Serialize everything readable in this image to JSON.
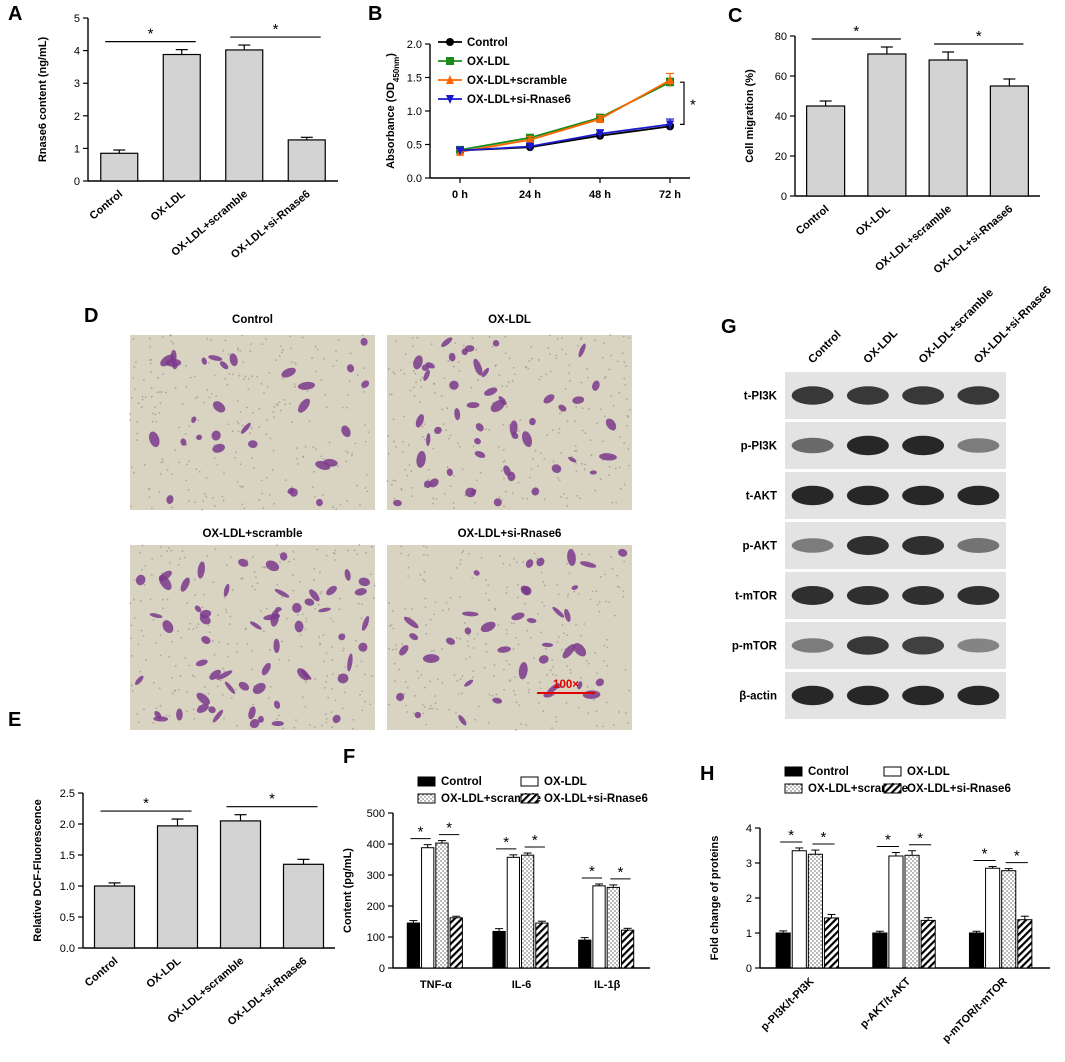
{
  "panels": {
    "A": "A",
    "B": "B",
    "C": "C",
    "D": "D",
    "E": "E",
    "F": "F",
    "G": "G",
    "H": "H"
  },
  "sig_mark": "*",
  "chart_data": [
    {
      "panel": "A",
      "type": "bar",
      "categories": [
        "Control",
        "OX-LDL",
        "OX-LDL+scramble",
        "OX-LDL+si-Rnase6"
      ],
      "values": [
        0.85,
        3.88,
        4.02,
        1.26
      ],
      "errors": [
        0.1,
        0.15,
        0.15,
        0.08
      ],
      "ylabel": "Rnase6 content (ng/mL)",
      "yticks": [
        0,
        1,
        2,
        3,
        4,
        5
      ],
      "ylim": [
        0,
        5
      ],
      "significance": [
        {
          "from": 0,
          "to": 1,
          "label": "*"
        },
        {
          "from": 2,
          "to": 3,
          "label": "*"
        }
      ]
    },
    {
      "panel": "B",
      "type": "line",
      "x": [
        "0 h",
        "24 h",
        "48 h",
        "72 h"
      ],
      "ylabel": "Absorbance (OD",
      "ylabel_sub": "450nm",
      "ylabel_end": ")",
      "yticks": [
        0.0,
        0.5,
        1.0,
        1.5,
        2.0
      ],
      "ylim": [
        0,
        2.0
      ],
      "series": [
        {
          "name": "Control",
          "color": "#000000",
          "marker": "circle",
          "values": [
            0.41,
            0.46,
            0.63,
            0.77
          ],
          "errors": [
            0.03,
            0.03,
            0.04,
            0.03
          ]
        },
        {
          "name": "OX-LDL",
          "color": "#1a8a1a",
          "marker": "square",
          "values": [
            0.42,
            0.6,
            0.9,
            1.43
          ],
          "errors": [
            0.04,
            0.05,
            0.05,
            0.06
          ]
        },
        {
          "name": "OX-LDL+scramble",
          "color": "#ff6600",
          "marker": "triangle-up",
          "values": [
            0.39,
            0.57,
            0.88,
            1.46
          ],
          "errors": [
            0.04,
            0.05,
            0.05,
            0.1
          ]
        },
        {
          "name": "OX-LDL+si-Rnase6",
          "color": "#1a1acc",
          "marker": "triangle-down",
          "values": [
            0.41,
            0.47,
            0.66,
            0.8
          ],
          "errors": [
            0.03,
            0.04,
            0.06,
            0.08
          ]
        }
      ],
      "significance_label": "*"
    },
    {
      "panel": "C",
      "type": "bar",
      "categories": [
        "Control",
        "OX-LDL",
        "OX-LDL+scramble",
        "OX-LDL+si-Rnase6"
      ],
      "values": [
        45,
        71,
        68,
        55
      ],
      "errors": [
        2.5,
        3.5,
        4,
        3.5
      ],
      "ylabel": "Cell migration (%)",
      "yticks": [
        0,
        20,
        40,
        60,
        80
      ],
      "ylim": [
        0,
        80
      ],
      "significance": [
        {
          "from": 0,
          "to": 1,
          "label": "*"
        },
        {
          "from": 2,
          "to": 3,
          "label": "*"
        }
      ]
    },
    {
      "panel": "E",
      "type": "bar",
      "categories": [
        "Control",
        "OX-LDL",
        "OX-LDL+scramble",
        "OX-LDL+si-Rnase6"
      ],
      "values": [
        1.0,
        1.97,
        2.05,
        1.35
      ],
      "errors": [
        0.05,
        0.11,
        0.1,
        0.08
      ],
      "ylabel": "Relative DCF-Fluorescence",
      "yticks": [
        "0.0",
        "0.5",
        "1.0",
        "1.5",
        "2.0",
        "2.5"
      ],
      "ylim": [
        0,
        2.5
      ],
      "significance": [
        {
          "from": 0,
          "to": 1,
          "label": "*"
        },
        {
          "from": 2,
          "to": 3,
          "label": "*"
        }
      ]
    },
    {
      "panel": "F",
      "type": "bar",
      "categories": [
        "TNF-α",
        "IL-6",
        "IL-1β"
      ],
      "ylabel": "Content (pg/mL)",
      "yticks": [
        0,
        100,
        200,
        300,
        400,
        500
      ],
      "ylim": [
        0,
        500
      ],
      "series": [
        {
          "name": "Control",
          "pattern": "solid",
          "values": [
            145,
            118,
            90
          ],
          "errors": [
            8,
            9,
            8
          ]
        },
        {
          "name": "OX-LDL",
          "pattern": "white",
          "values": [
            388,
            357,
            265
          ],
          "errors": [
            10,
            8,
            6
          ]
        },
        {
          "name": "OX-LDL+scramble",
          "pattern": "dots",
          "values": [
            403,
            364,
            260
          ],
          "errors": [
            8,
            7,
            8
          ]
        },
        {
          "name": "OX-LDL+si-Rnase6",
          "pattern": "hatch",
          "values": [
            162,
            145,
            122
          ],
          "errors": [
            5,
            6,
            6
          ]
        }
      ],
      "significance_label": "*"
    },
    {
      "panel": "H",
      "type": "bar",
      "categories": [
        "p-PI3K/t-PI3K",
        "p-AKT/t-AKT",
        "p-mTOR/t-mTOR"
      ],
      "ylabel": "Fold change of  proteins",
      "yticks": [
        0,
        1,
        2,
        3,
        4
      ],
      "ylim": [
        0,
        4
      ],
      "series": [
        {
          "name": "Control",
          "pattern": "solid",
          "values": [
            1.0,
            1.0,
            1.0
          ],
          "errors": [
            0.06,
            0.05,
            0.05
          ]
        },
        {
          "name": "OX-LDL",
          "pattern": "white",
          "values": [
            3.35,
            3.2,
            2.85
          ],
          "errors": [
            0.08,
            0.1,
            0.05
          ]
        },
        {
          "name": "OX-LDL+scramble",
          "pattern": "dots",
          "values": [
            3.25,
            3.22,
            2.78
          ],
          "errors": [
            0.12,
            0.13,
            0.06
          ]
        },
        {
          "name": "OX-LDL+si-Rnase6",
          "pattern": "hatch",
          "values": [
            1.43,
            1.36,
            1.38
          ],
          "errors": [
            0.1,
            0.08,
            0.1
          ]
        }
      ],
      "significance_label": "*"
    }
  ],
  "micrographs": {
    "titles": [
      "Control",
      "OX-LDL",
      "OX-LDL+scramble",
      "OX-LDL+si-Rnase6"
    ],
    "scale_label": "100×",
    "scale_color": "#e00000"
  },
  "western_blot": {
    "lanes": [
      "Control",
      "OX-LDL",
      "OX-LDL+scramble",
      "OX-LDL+si-Rnase6"
    ],
    "rows": [
      {
        "label": "t-PI3K",
        "intensity": [
          0.85,
          0.85,
          0.85,
          0.85
        ]
      },
      {
        "label": "p-PI3K",
        "intensity": [
          0.55,
          0.95,
          0.95,
          0.45
        ]
      },
      {
        "label": "t-AKT",
        "intensity": [
          0.95,
          0.95,
          0.95,
          0.95
        ]
      },
      {
        "label": "p-AKT",
        "intensity": [
          0.45,
          0.9,
          0.9,
          0.5
        ]
      },
      {
        "label": "t-mTOR",
        "intensity": [
          0.9,
          0.9,
          0.9,
          0.9
        ]
      },
      {
        "label": "p-mTOR",
        "intensity": [
          0.45,
          0.85,
          0.8,
          0.4
        ]
      },
      {
        "label": "β-actin",
        "intensity": [
          0.95,
          0.95,
          0.95,
          0.95
        ]
      }
    ]
  }
}
